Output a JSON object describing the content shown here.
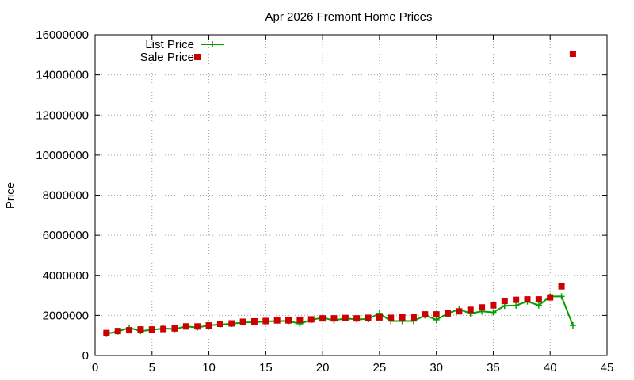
{
  "chart_data": {
    "type": "line",
    "title": "Apr 2026 Fremont Home Prices",
    "xlabel": "",
    "ylabel": "Price",
    "xlim": [
      0,
      45
    ],
    "ylim": [
      0,
      16000000
    ],
    "xticks": [
      0,
      5,
      10,
      15,
      20,
      25,
      30,
      35,
      40,
      45
    ],
    "yticks": [
      0,
      2000000,
      4000000,
      6000000,
      8000000,
      10000000,
      12000000,
      14000000,
      16000000
    ],
    "grid": true,
    "legend_position": "top-left",
    "series": [
      {
        "name": "List Price",
        "style": "line+cross",
        "color": "#00a000",
        "x": [
          1,
          2,
          3,
          4,
          5,
          6,
          7,
          8,
          9,
          10,
          11,
          12,
          13,
          14,
          15,
          16,
          17,
          18,
          19,
          20,
          21,
          22,
          23,
          24,
          25,
          26,
          27,
          28,
          29,
          30,
          31,
          32,
          33,
          34,
          35,
          36,
          37,
          38,
          39,
          40,
          41,
          42
        ],
        "y": [
          1080000,
          1200000,
          1380000,
          1220000,
          1280000,
          1350000,
          1320000,
          1450000,
          1400000,
          1500000,
          1550000,
          1580000,
          1650000,
          1660000,
          1700000,
          1720000,
          1720000,
          1580000,
          1780000,
          1880000,
          1750000,
          1850000,
          1800000,
          1820000,
          2100000,
          1720000,
          1720000,
          1720000,
          2000000,
          1780000,
          2100000,
          2300000,
          2100000,
          2200000,
          2150000,
          2480000,
          2500000,
          2700000,
          2500000,
          2950000,
          2950000,
          1500000
        ]
      },
      {
        "name": "Sale Price",
        "style": "square",
        "color": "#cc0000",
        "x": [
          1,
          2,
          3,
          4,
          5,
          6,
          7,
          8,
          9,
          10,
          11,
          12,
          13,
          14,
          15,
          16,
          17,
          18,
          19,
          20,
          21,
          22,
          23,
          24,
          25,
          26,
          27,
          28,
          29,
          30,
          31,
          32,
          33,
          34,
          35,
          36,
          37,
          38,
          39,
          40,
          41,
          42
        ],
        "y": [
          1120000,
          1220000,
          1260000,
          1300000,
          1300000,
          1320000,
          1350000,
          1450000,
          1450000,
          1500000,
          1580000,
          1600000,
          1680000,
          1700000,
          1720000,
          1750000,
          1750000,
          1780000,
          1800000,
          1850000,
          1850000,
          1870000,
          1850000,
          1880000,
          1900000,
          1880000,
          1900000,
          1900000,
          2050000,
          2050000,
          2100000,
          2200000,
          2280000,
          2400000,
          2500000,
          2720000,
          2780000,
          2800000,
          2800000,
          2900000,
          3450000,
          15050000
        ]
      }
    ]
  }
}
